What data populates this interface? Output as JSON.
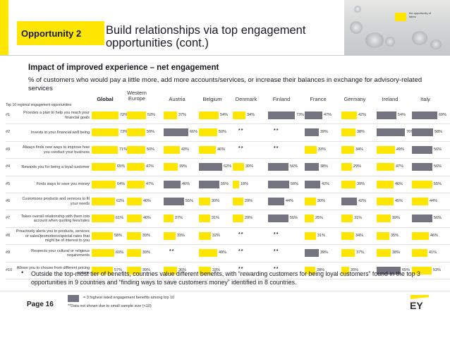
{
  "header": {
    "opportunity_label": "Opportunity 2",
    "title": "Build relationships via top engagement opportunities (cont.)",
    "photo_text": "the opportunity of fabric"
  },
  "subheading": "Impact of improved experience – net engagement",
  "description": "% of customers who would pay a little more, add more accounts/services, or increase their balances in exchange for advisory-related services",
  "table": {
    "top10_label": "Top 10 regional engagement opportunities",
    "columns": [
      "Global",
      "Western Europe",
      "Austria",
      "Belgium",
      "Denmark",
      "Finland",
      "France",
      "Germany",
      "Ireland",
      "Italy"
    ],
    "na_marker": "**",
    "rows": [
      {
        "num": "#1",
        "label": "Provides a plan to help you reach your financial goals",
        "cells": [
          {
            "v": "72%",
            "p": 72,
            "h": 0
          },
          {
            "v": "52%",
            "p": 52,
            "h": 0
          },
          {
            "v": "37%",
            "p": 37,
            "h": 0
          },
          {
            "v": "54%",
            "p": 54,
            "h": 0
          },
          {
            "v": "34%",
            "p": 34,
            "h": 0
          },
          {
            "v": "73%",
            "p": 73,
            "h": 1
          },
          {
            "v": "47%",
            "p": 47,
            "h": 1
          },
          {
            "v": "42%",
            "p": 42,
            "h": 0
          },
          {
            "v": "54%",
            "p": 54,
            "h": 1
          },
          {
            "v": "69%",
            "p": 69,
            "h": 1
          }
        ]
      },
      {
        "num": "#2",
        "label": "Invests in your financial well being",
        "cells": [
          {
            "v": "73%",
            "p": 73,
            "h": 0
          },
          {
            "v": "50%",
            "p": 50,
            "h": 0
          },
          {
            "v": "66%",
            "p": 66,
            "h": 1
          },
          {
            "v": "50%",
            "p": 50,
            "h": 0
          },
          {
            "v": null,
            "p": 0,
            "h": 0
          },
          {
            "v": null,
            "p": 0,
            "h": 0
          },
          {
            "v": "39%",
            "p": 39,
            "h": 1
          },
          {
            "v": "38%",
            "p": 38,
            "h": 0
          },
          {
            "v": "76%",
            "p": 76,
            "h": 1
          },
          {
            "v": "58%",
            "p": 58,
            "h": 1
          }
        ]
      },
      {
        "num": "#3",
        "label": "Always finds new ways to improve how you conduct your business",
        "cells": [
          {
            "v": "71%",
            "p": 71,
            "h": 0
          },
          {
            "v": "50%",
            "p": 50,
            "h": 0
          },
          {
            "v": "43%",
            "p": 43,
            "h": 0
          },
          {
            "v": "46%",
            "p": 46,
            "h": 0
          },
          {
            "v": null,
            "p": 0,
            "h": 0
          },
          {
            "v": null,
            "p": 0,
            "h": 0
          },
          {
            "v": "33%",
            "p": 33,
            "h": 0
          },
          {
            "v": "34%",
            "p": 34,
            "h": 0
          },
          {
            "v": "49%",
            "p": 49,
            "h": 0
          },
          {
            "v": "56%",
            "p": 56,
            "h": 1
          }
        ]
      },
      {
        "num": "#4",
        "label": "Rewards you for being a loyal customer",
        "cells": [
          {
            "v": "65%",
            "p": 65,
            "h": 0
          },
          {
            "v": "47%",
            "p": 47,
            "h": 0
          },
          {
            "v": "39%",
            "p": 39,
            "h": 0
          },
          {
            "v": "62%",
            "p": 62,
            "h": 1
          },
          {
            "v": "30%",
            "p": 30,
            "h": 0
          },
          {
            "v": "56%",
            "p": 56,
            "h": 1
          },
          {
            "v": "38%",
            "p": 38,
            "h": 1
          },
          {
            "v": "29%",
            "p": 29,
            "h": 0
          },
          {
            "v": "47%",
            "p": 47,
            "h": 0
          },
          {
            "v": "56%",
            "p": 56,
            "h": 1
          }
        ]
      },
      {
        "num": "#5",
        "label": "Finds ways to save you money",
        "cells": [
          {
            "v": "64%",
            "p": 64,
            "h": 0
          },
          {
            "v": "47%",
            "p": 47,
            "h": 0
          },
          {
            "v": "46%",
            "p": 46,
            "h": 1
          },
          {
            "v": "55%",
            "p": 55,
            "h": 1
          },
          {
            "v": "18%",
            "p": 18,
            "h": 0
          },
          {
            "v": "58%",
            "p": 58,
            "h": 1
          },
          {
            "v": "42%",
            "p": 42,
            "h": 1
          },
          {
            "v": "39%",
            "p": 39,
            "h": 0
          },
          {
            "v": "46%",
            "p": 46,
            "h": 0
          },
          {
            "v": "55%",
            "p": 55,
            "h": 0
          }
        ]
      },
      {
        "num": "#6",
        "label": "Customizes products and services to fit your needs",
        "cells": [
          {
            "v": "62%",
            "p": 62,
            "h": 0
          },
          {
            "v": "40%",
            "p": 40,
            "h": 0
          },
          {
            "v": "55%",
            "p": 55,
            "h": 1
          },
          {
            "v": "30%",
            "p": 30,
            "h": 0
          },
          {
            "v": "29%",
            "p": 29,
            "h": 0
          },
          {
            "v": "44%",
            "p": 44,
            "h": 1
          },
          {
            "v": "30%",
            "p": 30,
            "h": 0
          },
          {
            "v": "42%",
            "p": 42,
            "h": 1
          },
          {
            "v": "45%",
            "p": 45,
            "h": 0
          },
          {
            "v": "44%",
            "p": 44,
            "h": 0
          }
        ]
      },
      {
        "num": "#7",
        "label": "Takes overall relationship with them into account when quoting fees/rates",
        "cells": [
          {
            "v": "61%",
            "p": 61,
            "h": 0
          },
          {
            "v": "40%",
            "p": 40,
            "h": 0
          },
          {
            "v": "27%",
            "p": 27,
            "h": 0
          },
          {
            "v": "31%",
            "p": 31,
            "h": 0
          },
          {
            "v": "29%",
            "p": 29,
            "h": 0
          },
          {
            "v": "55%",
            "p": 55,
            "h": 1
          },
          {
            "v": "25%",
            "p": 25,
            "h": 0
          },
          {
            "v": "31%",
            "p": 31,
            "h": 0
          },
          {
            "v": "39%",
            "p": 39,
            "h": 0
          },
          {
            "v": "56%",
            "p": 56,
            "h": 1
          }
        ]
      },
      {
        "num": "#8",
        "label": "Proactively alerts you to products, services or sales/promotions/special rates that might be of interest to you",
        "cells": [
          {
            "v": "58%",
            "p": 58,
            "h": 0
          },
          {
            "v": "39%",
            "p": 39,
            "h": 0
          },
          {
            "v": "33%",
            "p": 33,
            "h": 0
          },
          {
            "v": "32%",
            "p": 32,
            "h": 0
          },
          {
            "v": null,
            "p": 0,
            "h": 0
          },
          {
            "v": null,
            "p": 0,
            "h": 0
          },
          {
            "v": "31%",
            "p": 31,
            "h": 0
          },
          {
            "v": "34%",
            "p": 34,
            "h": 0
          },
          {
            "v": "35%",
            "p": 35,
            "h": 0
          },
          {
            "v": "46%",
            "p": 46,
            "h": 0
          }
        ]
      },
      {
        "num": "#9",
        "label": "Respects your cultural or religious requirements",
        "cells": [
          {
            "v": "60%",
            "p": 60,
            "h": 0
          },
          {
            "v": "39%",
            "p": 39,
            "h": 0
          },
          {
            "v": null,
            "p": 0,
            "h": 0
          },
          {
            "v": "49%",
            "p": 49,
            "h": 0
          },
          {
            "v": null,
            "p": 0,
            "h": 0
          },
          {
            "v": null,
            "p": 0,
            "h": 0
          },
          {
            "v": "39%",
            "p": 39,
            "h": 1
          },
          {
            "v": "37%",
            "p": 37,
            "h": 0
          },
          {
            "v": "38%",
            "p": 38,
            "h": 0
          },
          {
            "v": "41%",
            "p": 41,
            "h": 0
          }
        ]
      },
      {
        "num": "#10",
        "label": "Allows you to choose from different pricing options",
        "cells": [
          {
            "v": "57%",
            "p": 57,
            "h": 0
          },
          {
            "v": "39%",
            "p": 39,
            "h": 0
          },
          {
            "v": "36%",
            "p": 36,
            "h": 0
          },
          {
            "v": "33%",
            "p": 33,
            "h": 0
          },
          {
            "v": null,
            "p": 0,
            "h": 0
          },
          {
            "v": null,
            "p": 0,
            "h": 0
          },
          {
            "v": "28%",
            "p": 28,
            "h": 0
          },
          {
            "v": "20%",
            "p": 20,
            "h": 0
          },
          {
            "v": "65%",
            "p": 65,
            "h": 1
          },
          {
            "v": "53%",
            "p": 53,
            "h": 0
          }
        ]
      }
    ]
  },
  "bullet": "Outside the top-most tier of benefits, countries value different benefits, with “rewarding customers for being loyal customers” found in the top 3 opportunities in 9 countries and “finding ways to save customers money” identified in 8 countries.",
  "footer": {
    "page_label": "Page 16",
    "legend_text": "= 3 highest rated engagement benefits among top 10",
    "footnote": "**Data not shown due to small sample size (<10)",
    "logo": "EY"
  },
  "colors": {
    "yellow": "#ffe600",
    "grey": "#747480",
    "dark": "#1a1a24"
  }
}
